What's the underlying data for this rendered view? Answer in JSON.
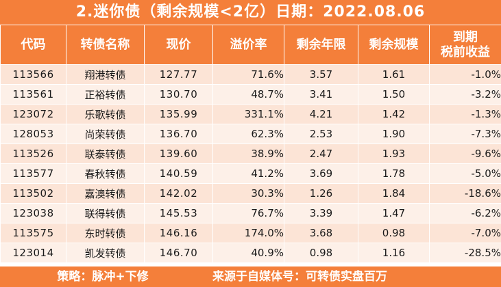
{
  "title": "2.迷你债（剩余规模<2亿）日期：2022.08.06",
  "headers": {
    "code": "代码",
    "name": "转债名称",
    "price": "现价",
    "premium": "溢价率",
    "years": "剩余年限",
    "scale": "剩余规模",
    "yield_line1": "到期",
    "yield_line2": "税前收益"
  },
  "rows": [
    {
      "code": "113566",
      "name": "翔港转债",
      "price": "127.77",
      "premium": "71.6%",
      "years": "3.57",
      "scale": "1.61",
      "yield": "-1.0%"
    },
    {
      "code": "113561",
      "name": "正裕转债",
      "price": "130.70",
      "premium": "48.7%",
      "years": "3.41",
      "scale": "1.50",
      "yield": "-3.2%"
    },
    {
      "code": "123072",
      "name": "乐歌转债",
      "price": "135.99",
      "premium": "331.1%",
      "years": "4.21",
      "scale": "1.42",
      "yield": "-1.3%"
    },
    {
      "code": "128053",
      "name": "尚荣转债",
      "price": "136.70",
      "premium": "62.3%",
      "years": "2.53",
      "scale": "1.90",
      "yield": "-7.3%"
    },
    {
      "code": "113526",
      "name": "联泰转债",
      "price": "139.60",
      "premium": "38.9%",
      "years": "2.47",
      "scale": "1.93",
      "yield": "-9.6%"
    },
    {
      "code": "113577",
      "name": "春秋转债",
      "price": "140.59",
      "premium": "41.2%",
      "years": "3.69",
      "scale": "1.78",
      "yield": "-5.0%"
    },
    {
      "code": "113502",
      "name": "嘉澳转债",
      "price": "142.02",
      "premium": "30.3%",
      "years": "1.26",
      "scale": "1.84",
      "yield": "-18.6%"
    },
    {
      "code": "123038",
      "name": "联得转债",
      "price": "145.53",
      "premium": "76.7%",
      "years": "3.39",
      "scale": "1.47",
      "yield": "-6.2%"
    },
    {
      "code": "113575",
      "name": "东时转债",
      "price": "146.16",
      "premium": "174.0%",
      "years": "3.68",
      "scale": "0.98",
      "yield": "-7.0%"
    },
    {
      "code": "123014",
      "name": "凯发转债",
      "price": "146.70",
      "premium": "40.9%",
      "years": "0.98",
      "scale": "1.16",
      "yield": "-28.5%"
    }
  ],
  "footer": {
    "strategy": "策略：脉冲+下修",
    "source": "来源于自媒体号：可转债实盘百万"
  },
  "colors": {
    "header_bg": "#f47f3a",
    "row_odd": "#fce4d6",
    "row_even": "#fdf0e8"
  }
}
